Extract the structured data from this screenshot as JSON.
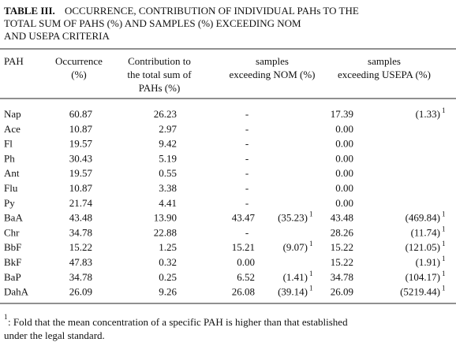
{
  "title": {
    "label": "TABLE III.",
    "lines": [
      "OCCURRENCE, CONTRIBUTION OF INDIVIDUAL PAHs TO THE",
      "TOTAL SUM OF PAHS (%) AND SAMPLES (%) EXCEEDING NOM",
      "AND USEPA CRITERIA"
    ]
  },
  "table": {
    "headers": [
      [
        "PAH"
      ],
      [
        "Occurrence",
        "(%)"
      ],
      [
        "Contribution to",
        "the total sum of",
        "PAHs (%)"
      ],
      [
        "samples",
        "exceeding NOM (%)"
      ],
      [
        "samples",
        "exceeding USEPA (%)"
      ]
    ],
    "rows": [
      [
        "Nap",
        "60.87",
        "26.23",
        "-",
        null,
        "17.39",
        "(1.33)"
      ],
      [
        "Ace",
        "10.87",
        "2.97",
        "-",
        null,
        "0.00",
        null
      ],
      [
        "Fl",
        "19.57",
        "9.42",
        "-",
        null,
        "0.00",
        null
      ],
      [
        "Ph",
        "30.43",
        "5.19",
        "-",
        null,
        "0.00",
        null
      ],
      [
        "Ant",
        "19.57",
        "0.55",
        "-",
        null,
        "0.00",
        null
      ],
      [
        "Flu",
        "10.87",
        "3.38",
        "-",
        null,
        "0.00",
        null
      ],
      [
        "Py",
        "21.74",
        "4.41",
        "-",
        null,
        "0.00",
        null
      ],
      [
        "BaA",
        "43.48",
        "13.90",
        "43.47",
        "(35.23)",
        "43.48",
        "(469.84)"
      ],
      [
        "Chr",
        "34.78",
        "22.88",
        "-",
        null,
        "28.26",
        "(11.74)"
      ],
      [
        "BbF",
        "15.22",
        "1.25",
        "15.21",
        "(9.07)",
        "15.22",
        "(121.05)"
      ],
      [
        "BkF",
        "47.83",
        "0.32",
        "0.00",
        null,
        "15.22",
        "(1.91)"
      ],
      [
        "BaP",
        "34.78",
        "0.25",
        "6.52",
        "(1.41)",
        "34.78",
        "(104.17)"
      ],
      [
        "DahA",
        "26.09",
        "9.26",
        "26.08",
        "(39.14)",
        "26.09",
        "(5219.44)"
      ]
    ]
  },
  "footnote": {
    "mark": "1",
    "lines": [
      ": Fold that the mean concentration of a specific PAH is higher than that established",
      "under the legal standard."
    ]
  }
}
